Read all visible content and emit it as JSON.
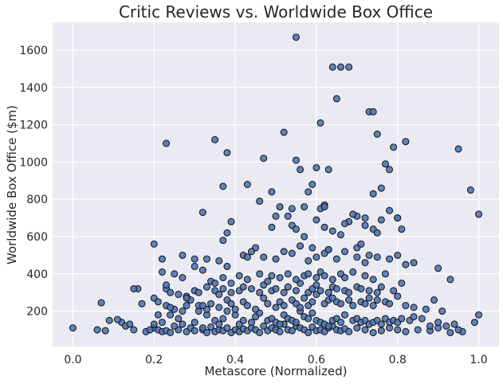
{
  "chart_data": {
    "type": "scatter",
    "title": "Critic Reviews vs. Worldwide Box Office",
    "xlabel": "Metascore (Normalized)",
    "ylabel": "Worldwide Box Office ($m)",
    "xlim": [
      -0.05,
      1.05
    ],
    "ylim": [
      10,
      1750
    ],
    "xticks": [
      "0.0",
      "0.2",
      "0.4",
      "0.6",
      "0.8",
      "1.0"
    ],
    "yticks": [
      "200",
      "400",
      "600",
      "800",
      "1000",
      "1200",
      "1400",
      "1600"
    ],
    "grid": true,
    "colors": {
      "background": "#eaeaf2",
      "point": "#4c72b0",
      "edge": "#111111",
      "grid": "#ffffff"
    },
    "series": [
      {
        "x": [
          0.0,
          0.06,
          0.08,
          0.12,
          0.13,
          0.15,
          0.18,
          0.2,
          0.21,
          0.22,
          0.23,
          0.24,
          0.26,
          0.27,
          0.28,
          0.29,
          0.3,
          0.32,
          0.33,
          0.34,
          0.35,
          0.36,
          0.37,
          0.38,
          0.39,
          0.4,
          0.41,
          0.42,
          0.43,
          0.44,
          0.45,
          0.46,
          0.47,
          0.48,
          0.49,
          0.5,
          0.51,
          0.52,
          0.53,
          0.54,
          0.55,
          0.56,
          0.57,
          0.58,
          0.59,
          0.6,
          0.61,
          0.62,
          0.63,
          0.64,
          0.65,
          0.66,
          0.67,
          0.68,
          0.7,
          0.72,
          0.74,
          0.76,
          0.78,
          0.8,
          0.82,
          0.85,
          0.88,
          0.9,
          0.93,
          0.96,
          0.99,
          1.0,
          0.07,
          0.09,
          0.11,
          0.14,
          0.16,
          0.17,
          0.19,
          0.21,
          0.22,
          0.24,
          0.25,
          0.26,
          0.28,
          0.3,
          0.31,
          0.32,
          0.33,
          0.35,
          0.36,
          0.37,
          0.38,
          0.4,
          0.41,
          0.42,
          0.44,
          0.45,
          0.46,
          0.48,
          0.49,
          0.5,
          0.51,
          0.52,
          0.53,
          0.54,
          0.55,
          0.56,
          0.57,
          0.58,
          0.59,
          0.6,
          0.61,
          0.62,
          0.63,
          0.64,
          0.65,
          0.66,
          0.67,
          0.69,
          0.7,
          0.71,
          0.72,
          0.73,
          0.74,
          0.75,
          0.76,
          0.77,
          0.78,
          0.79,
          0.8,
          0.81,
          0.83,
          0.84,
          0.86,
          0.88,
          0.9,
          0.92,
          0.94,
          0.95,
          0.2,
          0.21,
          0.23,
          0.25,
          0.27,
          0.29,
          0.31,
          0.33,
          0.34,
          0.36,
          0.38,
          0.39,
          0.4,
          0.42,
          0.43,
          0.45,
          0.47,
          0.48,
          0.5,
          0.51,
          0.52,
          0.54,
          0.55,
          0.56,
          0.57,
          0.58,
          0.59,
          0.6,
          0.62,
          0.63,
          0.64,
          0.65,
          0.66,
          0.68,
          0.69,
          0.71,
          0.72,
          0.73,
          0.74,
          0.75,
          0.77,
          0.78,
          0.8,
          0.82,
          0.84,
          0.87,
          0.89,
          0.91,
          0.23,
          0.24,
          0.26,
          0.28,
          0.3,
          0.31,
          0.33,
          0.35,
          0.36,
          0.37,
          0.39,
          0.41,
          0.42,
          0.44,
          0.46,
          0.47,
          0.49,
          0.5,
          0.52,
          0.53,
          0.55,
          0.56,
          0.58,
          0.59,
          0.6,
          0.61,
          0.63,
          0.64,
          0.65,
          0.67,
          0.68,
          0.7,
          0.71,
          0.73,
          0.75,
          0.76,
          0.79,
          0.81,
          0.22,
          0.25,
          0.27,
          0.3,
          0.32,
          0.34,
          0.37,
          0.39,
          0.41,
          0.43,
          0.46,
          0.48,
          0.49,
          0.51,
          0.53,
          0.55,
          0.57,
          0.58,
          0.6,
          0.61,
          0.62,
          0.64,
          0.66,
          0.67,
          0.69,
          0.72,
          0.74,
          0.77,
          0.15,
          0.2,
          0.23,
          0.27,
          0.3,
          0.33,
          0.36,
          0.38,
          0.42,
          0.45,
          0.47,
          0.5,
          0.52,
          0.54,
          0.56,
          0.58,
          0.6,
          0.62,
          0.63,
          0.65,
          0.67,
          0.7,
          0.72,
          0.73,
          0.75,
          0.78,
          0.8,
          0.2,
          0.22,
          0.24,
          0.28,
          0.32,
          0.35,
          0.37,
          0.38,
          0.39,
          0.43,
          0.44,
          0.46,
          0.49,
          0.5,
          0.53,
          0.54,
          0.55,
          0.57,
          0.59,
          0.6,
          0.61,
          0.62,
          0.63,
          0.64,
          0.66,
          0.68,
          0.7,
          0.71,
          0.72,
          0.74,
          0.75,
          0.76,
          0.78,
          0.8,
          0.81,
          0.82,
          0.84,
          0.9,
          0.93,
          0.23,
          0.32,
          0.35,
          0.37,
          0.38,
          0.43,
          0.47,
          0.49,
          0.51,
          0.52,
          0.54,
          0.55,
          0.56,
          0.57,
          0.58,
          0.59,
          0.6,
          0.61,
          0.62,
          0.63,
          0.64,
          0.65,
          0.66,
          0.67,
          0.69,
          0.7,
          0.72,
          0.73,
          0.74,
          0.75,
          0.76,
          0.77,
          0.78,
          0.79,
          0.8,
          0.82,
          0.95,
          0.98,
          1.0
        ],
        "y": [
          110,
          100,
          95,
          140,
          120,
          100,
          90,
          110,
          100,
          90,
          95,
          85,
          100,
          130,
          90,
          110,
          95,
          100,
          85,
          115,
          90,
          100,
          95,
          110,
          85,
          100,
          90,
          105,
          95,
          110,
          100,
          85,
          120,
          95,
          110,
          100,
          90,
          130,
          100,
          95,
          120,
          110,
          100,
          85,
          115,
          95,
          100,
          90,
          110,
          120,
          100,
          95,
          105,
          90,
          110,
          100,
          85,
          95,
          110,
          100,
          90,
          100,
          95,
          110,
          85,
          90,
          140,
          180,
          245,
          150,
          155,
          130,
          320,
          240,
          100,
          180,
          140,
          180,
          120,
          160,
          230,
          140,
          200,
          110,
          180,
          150,
          130,
          160,
          200,
          180,
          130,
          150,
          140,
          170,
          190,
          150,
          160,
          140,
          130,
          180,
          160,
          150,
          140,
          200,
          170,
          160,
          190,
          150,
          140,
          130,
          120,
          150,
          160,
          140,
          180,
          150,
          160,
          140,
          150,
          130,
          140,
          150,
          130,
          160,
          140,
          150,
          140,
          160,
          150,
          170,
          160,
          120,
          140,
          120,
          130,
          100,
          270,
          250,
          230,
          210,
          200,
          260,
          230,
          210,
          240,
          220,
          260,
          240,
          210,
          250,
          230,
          210,
          270,
          240,
          220,
          250,
          230,
          260,
          240,
          220,
          270,
          230,
          250,
          290,
          240,
          260,
          270,
          250,
          240,
          260,
          230,
          250,
          240,
          270,
          230,
          260,
          250,
          240,
          280,
          230,
          220,
          210,
          260,
          200,
          320,
          300,
          290,
          280,
          310,
          300,
          330,
          310,
          290,
          320,
          300,
          310,
          330,
          320,
          300,
          340,
          310,
          320,
          300,
          330,
          310,
          350,
          300,
          320,
          340,
          310,
          300,
          330,
          320,
          310,
          300,
          330,
          320,
          310,
          300,
          330,
          310,
          350,
          410,
          400,
          380,
          440,
          420,
          360,
          380,
          350,
          390,
          370,
          400,
          360,
          390,
          380,
          400,
          370,
          390,
          400,
          380,
          410,
          390,
          370,
          400,
          380,
          410,
          390,
          370,
          400,
          320,
          560,
          340,
          500,
          480,
          480,
          470,
          440,
          500,
          540,
          490,
          480,
          520,
          510,
          550,
          470,
          490,
          510,
          530,
          480,
          520,
          540,
          460,
          500,
          490,
          480,
          500,
          130,
          480,
          220,
          270,
          230,
          350,
          580,
          620,
          680,
          880,
          520,
          790,
          650,
          710,
          710,
          660,
          640,
          600,
          540,
          690,
          750,
          650,
          530,
          630,
          610,
          680,
          710,
          560,
          700,
          640,
          620,
          690,
          740,
          700,
          640,
          450,
          460,
          430,
          370,
          1100,
          730,
          1120,
          870,
          1050,
          490,
          1020,
          840,
          760,
          1160,
          750,
          1010,
          960,
          760,
          840,
          880,
          970,
          1210,
          770,
          960,
          1510,
          1340,
          1510,
          670,
          720,
          490,
          660,
          1270,
          830,
          1150,
          860,
          990,
          960,
          1080,
          700,
          1110,
          1070,
          850,
          720
        ]
      },
      {
        "x": [
          0.55,
          0.62,
          0.68,
          0.74
        ],
        "y": [
          1670,
          760,
          1510,
          1270
        ]
      }
    ]
  }
}
